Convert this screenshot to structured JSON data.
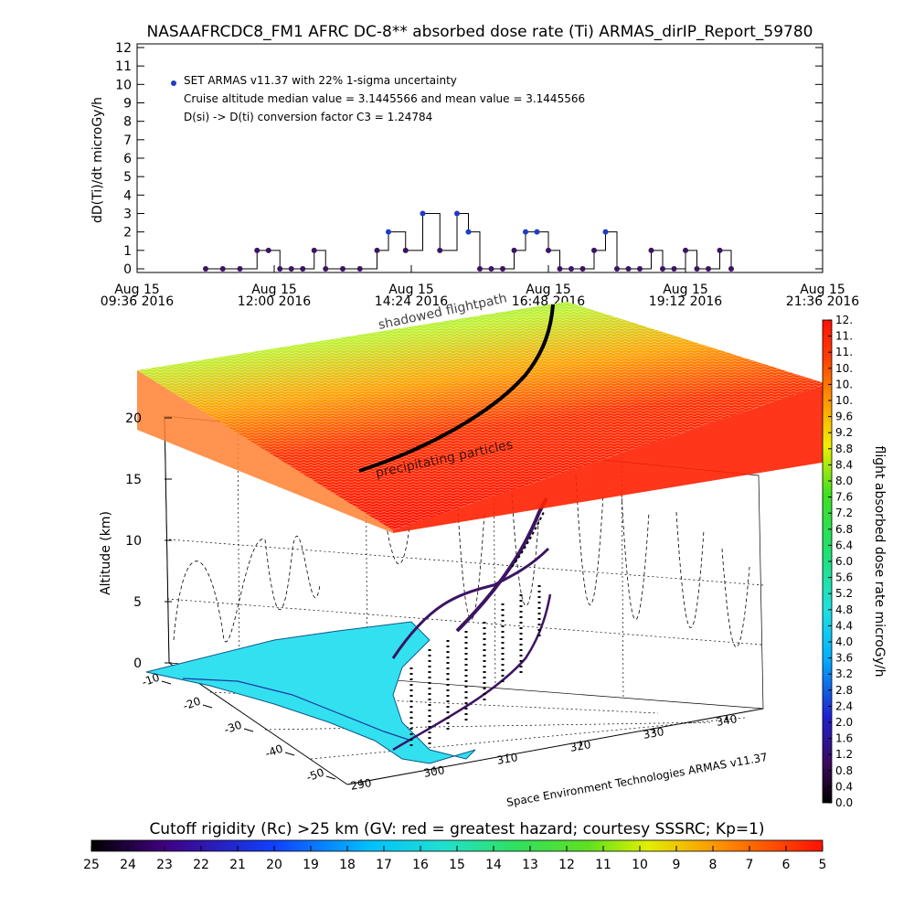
{
  "title": "NASAAFRCDC8_FM1 AFRC DC-8** absorbed dose rate (Ti) ARMAS_dirIP_Report_59780",
  "top_chart": {
    "ylabel": "dD(Ti)/dt microGy/h",
    "yticks": [
      "0",
      "1",
      "2",
      "3",
      "4",
      "5",
      "6",
      "7",
      "8",
      "9",
      "10",
      "11",
      "12"
    ],
    "xticks": [
      {
        "l1": "Aug 15",
        "l2": "09:36 2016"
      },
      {
        "l1": "Aug 15",
        "l2": "12:00 2016"
      },
      {
        "l1": "Aug 15",
        "l2": "14:24 2016"
      },
      {
        "l1": "Aug 15",
        "l2": "16:48 2016"
      },
      {
        "l1": "Aug 15",
        "l2": "19:12 2016"
      },
      {
        "l1": "Aug 15",
        "l2": "21:36 2016"
      }
    ],
    "legend": "SET ARMAS v11.37 with 22% 1-sigma uncertainty",
    "line2": "Cruise altitude median value = 3.1445566 and mean value = 3.1445566",
    "line3": "D(si) -> D(ti) conversion factor C3 = 1.24784"
  },
  "chart_data": {
    "type": "scatter",
    "x_unit": "hours since 09:36 (Aug 15 2016)",
    "xlim": [
      0,
      12
    ],
    "ylim": [
      0,
      12
    ],
    "x": [
      1.2,
      1.5,
      1.8,
      2.1,
      2.3,
      2.5,
      2.7,
      2.9,
      3.1,
      3.3,
      3.6,
      3.9,
      4.2,
      4.4,
      4.7,
      5.0,
      5.3,
      5.6,
      5.8,
      6.0,
      6.2,
      6.4,
      6.6,
      6.8,
      7.0,
      7.2,
      7.4,
      7.6,
      7.8,
      8.0,
      8.2,
      8.4,
      8.6,
      8.8,
      9.0,
      9.2,
      9.4,
      9.6,
      9.8,
      10.0,
      10.2,
      10.4
    ],
    "values": [
      0,
      0,
      0,
      1,
      1,
      0,
      0,
      0,
      1,
      0,
      0,
      0,
      1,
      2,
      1,
      3,
      1,
      3,
      2,
      0,
      0,
      0,
      1,
      2,
      2,
      1,
      0,
      0,
      0,
      1,
      2,
      0,
      0,
      0,
      1,
      0,
      0,
      1,
      0,
      0,
      1,
      0
    ]
  },
  "plot3d": {
    "label_shadowed": "shadowed flightpath",
    "label_precip": "precipitating particles",
    "z_label": "Altitude (km)",
    "z_ticks": [
      "0",
      "5",
      "10",
      "15",
      "20"
    ],
    "lat_ticks": [
      "-10",
      "-20",
      "-30",
      "-40",
      "-50"
    ],
    "lon_ticks": [
      "290",
      "300",
      "310",
      "320",
      "330",
      "340"
    ],
    "credit": "Space Environment Technologies ARMAS v11.37"
  },
  "right_colorbar": {
    "label": "flight absorbed dose rate microGy/h",
    "ticks": [
      "0.0",
      "0.4",
      "0.8",
      "1.2",
      "1.6",
      "2.0",
      "2.4",
      "2.8",
      "3.2",
      "3.6",
      "4.0",
      "4.4",
      "4.8",
      "5.2",
      "5.6",
      "6.0",
      "6.4",
      "6.8",
      "7.2",
      "7.6",
      "8.0",
      "8.4",
      "8.8",
      "9.2",
      "9.6",
      "10.",
      "10.",
      "10.",
      "11.",
      "11.",
      "12."
    ]
  },
  "bottom_colorbar": {
    "label": "Cutoff rigidity (Rc) >25 km (GV: red = greatest hazard; courtesy SSSRC; Kp=1)",
    "ticks": [
      "25",
      "24",
      "23",
      "22",
      "21",
      "20",
      "19",
      "18",
      "17",
      "16",
      "15",
      "14",
      "13",
      "12",
      "11",
      "10",
      "9",
      "8",
      "7",
      "6",
      "5"
    ]
  },
  "colors": {
    "dose_point": "#3b1463",
    "legend_marker": "#1e3cc8",
    "ocean_map": "#33e0f0",
    "hazard_red": "#ff2000",
    "hazard_green": "#3ee83a"
  }
}
